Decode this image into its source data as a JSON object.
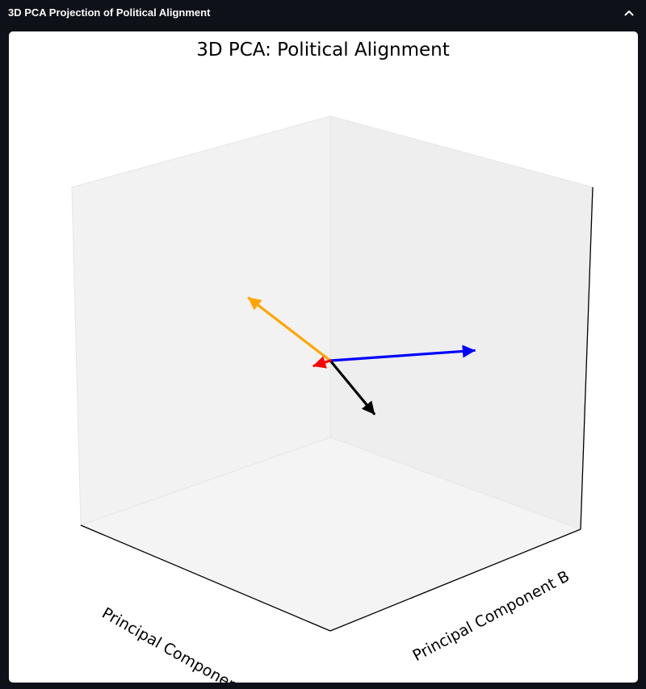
{
  "panel": {
    "title": "3D PCA Projection of Political Alignment",
    "collapse_icon": "chevron-up-icon"
  },
  "chart_data": {
    "type": "3d-quiver",
    "title": "3D PCA: Political Alignment",
    "xlabel": "Principal Component A",
    "ylabel": "Principal Component B",
    "zlabel": "",
    "xlim": [
      -1,
      1
    ],
    "ylim": [
      -1,
      1
    ],
    "zlim": [
      -1,
      1
    ],
    "origin": [
      0,
      0,
      0
    ],
    "show_ticks": false,
    "series": [
      {
        "color": "#0000ff",
        "vector": [
          0.2,
          0.95,
          -0.1
        ]
      },
      {
        "color": "#ffa500",
        "vector": [
          -0.1,
          -0.55,
          0.4
        ]
      },
      {
        "color": "#000000",
        "vector": [
          0.35,
          0.0,
          -0.2
        ]
      },
      {
        "color": "#ff0000",
        "vector": [
          0.0,
          -0.13,
          0.0
        ]
      }
    ]
  }
}
